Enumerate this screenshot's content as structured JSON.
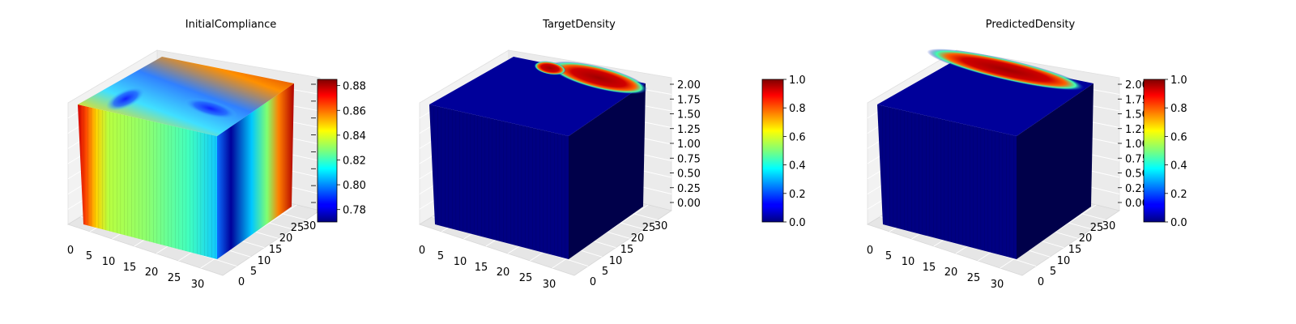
{
  "chart_data": [
    {
      "type": "voxel3d",
      "title": "InitialCompliance",
      "x_ticks": [
        "0",
        "5",
        "10",
        "15",
        "20",
        "25",
        "30"
      ],
      "y_ticks": [
        "0",
        "5",
        "10",
        "15",
        "20",
        "25",
        "30"
      ],
      "z_ticks": [],
      "colorbar": {
        "colormap": "jet",
        "range": [
          0.77,
          0.885
        ],
        "ticks": [
          "0.78",
          "0.80",
          "0.82",
          "0.84",
          "0.86",
          "0.88"
        ]
      },
      "grid": true
    },
    {
      "type": "voxel3d",
      "title": "TargetDensity",
      "x_ticks": [
        "0",
        "5",
        "10",
        "15",
        "20",
        "25",
        "30"
      ],
      "y_ticks": [
        "0",
        "5",
        "10",
        "15",
        "20",
        "25",
        "30"
      ],
      "z_ticks": [
        "0.00",
        "0.25",
        "0.50",
        "0.75",
        "1.00",
        "1.25",
        "1.50",
        "1.75",
        "2.00"
      ],
      "colorbar": {
        "colormap": "jet",
        "range": [
          0,
          1
        ],
        "ticks": [
          "0.0",
          "0.2",
          "0.4",
          "0.6",
          "0.8",
          "1.0"
        ]
      },
      "grid": true
    },
    {
      "type": "voxel3d",
      "title": "PredictedDensity",
      "x_ticks": [
        "0",
        "5",
        "10",
        "15",
        "20",
        "25",
        "30"
      ],
      "y_ticks": [
        "0",
        "5",
        "10",
        "15",
        "20",
        "25",
        "30"
      ],
      "z_ticks": [
        "0.00",
        "0.25",
        "0.50",
        "0.75",
        "1.00",
        "1.25",
        "1.50",
        "1.75",
        "2.00"
      ],
      "colorbar": {
        "colormap": "jet",
        "range": [
          0,
          1
        ],
        "ticks": [
          "0.0",
          "0.2",
          "0.4",
          "0.6",
          "0.8",
          "1.0"
        ]
      },
      "grid": true
    }
  ]
}
